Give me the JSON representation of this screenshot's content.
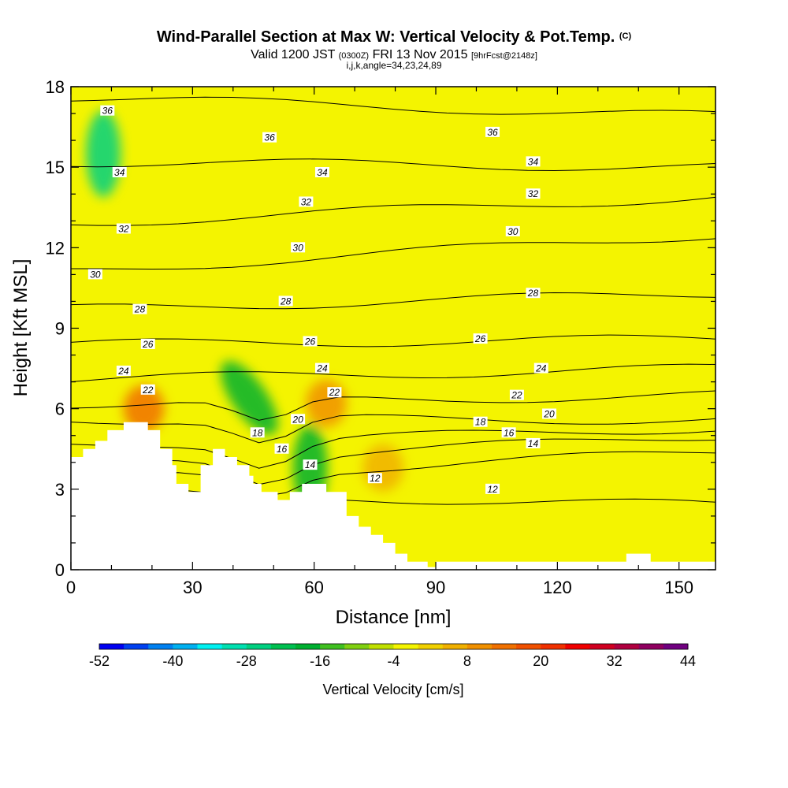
{
  "header": {
    "title": "Wind-Parallel Section at Max W: Vertical Velocity & Pot.Temp.",
    "copyright": "(C)",
    "valid_prefix": "Valid 1200 JST",
    "valid_utc": "(0300Z)",
    "valid_date": "FRI 13 Nov 2015",
    "forecast": "[9hrFcst@2148z]",
    "indices": "i,j,k,angle=34,23,24,89"
  },
  "chart_data": {
    "type": "heatmap",
    "xlabel": "Distance [nm]",
    "ylabel": "Height [Kft MSL]",
    "xlim": [
      0,
      159
    ],
    "ylim": [
      0,
      18
    ],
    "x_ticks": [
      "0",
      "30",
      "60",
      "90",
      "120",
      "150"
    ],
    "y_ticks": [
      "0",
      "3",
      "6",
      "9",
      "12",
      "15",
      "18"
    ],
    "x_tick_values": [
      0,
      30,
      60,
      90,
      120,
      150
    ],
    "y_tick_values": [
      0,
      3,
      6,
      9,
      12,
      15,
      18
    ],
    "background_color": "#f4f400",
    "terrain": [
      [
        0,
        4.2
      ],
      [
        3,
        4.2
      ],
      [
        3,
        4.5
      ],
      [
        6,
        4.5
      ],
      [
        6,
        4.8
      ],
      [
        9,
        4.8
      ],
      [
        9,
        5.2
      ],
      [
        13,
        5.2
      ],
      [
        13,
        5.5
      ],
      [
        19,
        5.5
      ],
      [
        19,
        5.2
      ],
      [
        22,
        5.2
      ],
      [
        22,
        4.5
      ],
      [
        25,
        4.5
      ],
      [
        25,
        3.9
      ],
      [
        26,
        3.9
      ],
      [
        26,
        3.2
      ],
      [
        29,
        3.2
      ],
      [
        29,
        2.9
      ],
      [
        32,
        2.9
      ],
      [
        32,
        3.9
      ],
      [
        35,
        3.9
      ],
      [
        35,
        4.5
      ],
      [
        38,
        4.5
      ],
      [
        38,
        4.2
      ],
      [
        41,
        4.2
      ],
      [
        41,
        3.9
      ],
      [
        44,
        3.9
      ],
      [
        44,
        3.5
      ],
      [
        45,
        3.5
      ],
      [
        45,
        3.2
      ],
      [
        47,
        3.2
      ],
      [
        47,
        2.9
      ],
      [
        51,
        2.9
      ],
      [
        51,
        2.6
      ],
      [
        54,
        2.6
      ],
      [
        54,
        2.9
      ],
      [
        57,
        2.9
      ],
      [
        57,
        3.2
      ],
      [
        63,
        3.2
      ],
      [
        63,
        2.9
      ],
      [
        68,
        2.9
      ],
      [
        68,
        2.0
      ],
      [
        71,
        2.0
      ],
      [
        71,
        1.6
      ],
      [
        74,
        1.6
      ],
      [
        74,
        1.3
      ],
      [
        77,
        1.3
      ],
      [
        77,
        1.0
      ],
      [
        80,
        1.0
      ],
      [
        80,
        0.6
      ],
      [
        83,
        0.6
      ],
      [
        83,
        0.3
      ],
      [
        88,
        0.3
      ],
      [
        88,
        0.1
      ],
      [
        90,
        0.1
      ],
      [
        90,
        0.3
      ],
      [
        137,
        0.3
      ],
      [
        137,
        0.6
      ],
      [
        143,
        0.6
      ],
      [
        143,
        0.3
      ],
      [
        159,
        0.3
      ]
    ],
    "theta_contour_levels": [
      12,
      14,
      16,
      18,
      20,
      22,
      24,
      26,
      28,
      30,
      32,
      34,
      36
    ],
    "theta_contours": [
      {
        "level": 36,
        "y_left": 17.6,
        "y_right": 16.9
      },
      {
        "level": 34,
        "y_left": 15.2,
        "y_right": 15.0
      },
      {
        "level": 32,
        "y_left": 12.9,
        "y_right": 13.9
      },
      {
        "level": 30,
        "y_left": 11.1,
        "y_right": 12.5
      },
      {
        "level": 28,
        "y_left": 9.7,
        "y_right": 10.3
      },
      {
        "level": 26,
        "y_left": 8.4,
        "y_right": 8.6
      },
      {
        "level": 24,
        "y_left": 7.1,
        "y_right": 7.5
      },
      {
        "level": 22,
        "y_left": 6.2,
        "y_right": 6.5
      },
      {
        "level": 20,
        "y_left": 5.6,
        "y_right": 5.6
      },
      {
        "level": 18,
        "y_left": 4.6,
        "y_right": 5.3
      },
      {
        "level": 16,
        "y_left": 3.9,
        "y_right": 5.0
      },
      {
        "level": 14,
        "y_left": 3.3,
        "y_right": 4.4
      },
      {
        "level": 12,
        "y_left": 2.9,
        "y_right": 2.4
      }
    ],
    "contour_labels": [
      {
        "text": "36",
        "x": 9,
        "y": 17.1
      },
      {
        "text": "36",
        "x": 49,
        "y": 16.1
      },
      {
        "text": "36",
        "x": 104,
        "y": 16.3
      },
      {
        "text": "34",
        "x": 12,
        "y": 14.8
      },
      {
        "text": "34",
        "x": 62,
        "y": 14.8
      },
      {
        "text": "34",
        "x": 114,
        "y": 15.2
      },
      {
        "text": "32",
        "x": 13,
        "y": 12.7
      },
      {
        "text": "32",
        "x": 58,
        "y": 13.7
      },
      {
        "text": "32",
        "x": 114,
        "y": 14.0
      },
      {
        "text": "30",
        "x": 6,
        "y": 11.0
      },
      {
        "text": "30",
        "x": 56,
        "y": 12.0
      },
      {
        "text": "30",
        "x": 109,
        "y": 12.6
      },
      {
        "text": "28",
        "x": 17,
        "y": 9.7
      },
      {
        "text": "28",
        "x": 53,
        "y": 10.0
      },
      {
        "text": "28",
        "x": 114,
        "y": 10.3
      },
      {
        "text": "26",
        "x": 19,
        "y": 8.4
      },
      {
        "text": "26",
        "x": 59,
        "y": 8.5
      },
      {
        "text": "26",
        "x": 101,
        "y": 8.6
      },
      {
        "text": "24",
        "x": 13,
        "y": 7.4
      },
      {
        "text": "24",
        "x": 62,
        "y": 7.5
      },
      {
        "text": "24",
        "x": 116,
        "y": 7.5
      },
      {
        "text": "22",
        "x": 19,
        "y": 6.7
      },
      {
        "text": "22",
        "x": 65,
        "y": 6.6
      },
      {
        "text": "22",
        "x": 110,
        "y": 6.5
      },
      {
        "text": "20",
        "x": 56,
        "y": 5.6
      },
      {
        "text": "20",
        "x": 118,
        "y": 5.8
      },
      {
        "text": "18",
        "x": 46,
        "y": 5.1
      },
      {
        "text": "18",
        "x": 101,
        "y": 5.5
      },
      {
        "text": "16",
        "x": 52,
        "y": 4.5
      },
      {
        "text": "16",
        "x": 108,
        "y": 5.1
      },
      {
        "text": "14",
        "x": 59,
        "y": 3.9
      },
      {
        "text": "14",
        "x": 114,
        "y": 4.7
      },
      {
        "text": "12",
        "x": 75,
        "y": 3.4
      },
      {
        "text": "12",
        "x": 104,
        "y": 3.0
      }
    ],
    "colorbar": {
      "label": "Vertical Velocity [cm/s]",
      "tick_labels": [
        "-52",
        "-40",
        "-28",
        "-16",
        "-4",
        "8",
        "20",
        "32",
        "44"
      ],
      "colors": [
        "#0000f0",
        "#0040f0",
        "#0080f0",
        "#00b0f0",
        "#00f0f0",
        "#00e0b0",
        "#00d080",
        "#00c050",
        "#00b030",
        "#40c020",
        "#80d010",
        "#c0e000",
        "#f4f400",
        "#f0d000",
        "#f0b000",
        "#f09000",
        "#f07000",
        "#f05000",
        "#f03000",
        "#f00000",
        "#d00020",
        "#b00040",
        "#900060",
        "#700080"
      ]
    },
    "velocity_features": [
      {
        "kind": "downdraft",
        "x": 8,
        "y": 15.5,
        "value": -28
      },
      {
        "kind": "downdraft",
        "x": 44,
        "y": 6.4,
        "value": -20
      },
      {
        "kind": "downdraft",
        "x": 59,
        "y": 3.8,
        "value": -20
      },
      {
        "kind": "updraft",
        "x": 18,
        "y": 6.0,
        "value": 14
      },
      {
        "kind": "updraft",
        "x": 63,
        "y": 6.2,
        "value": 8
      },
      {
        "kind": "updraft",
        "x": 77,
        "y": 3.8,
        "value": 6
      }
    ]
  }
}
